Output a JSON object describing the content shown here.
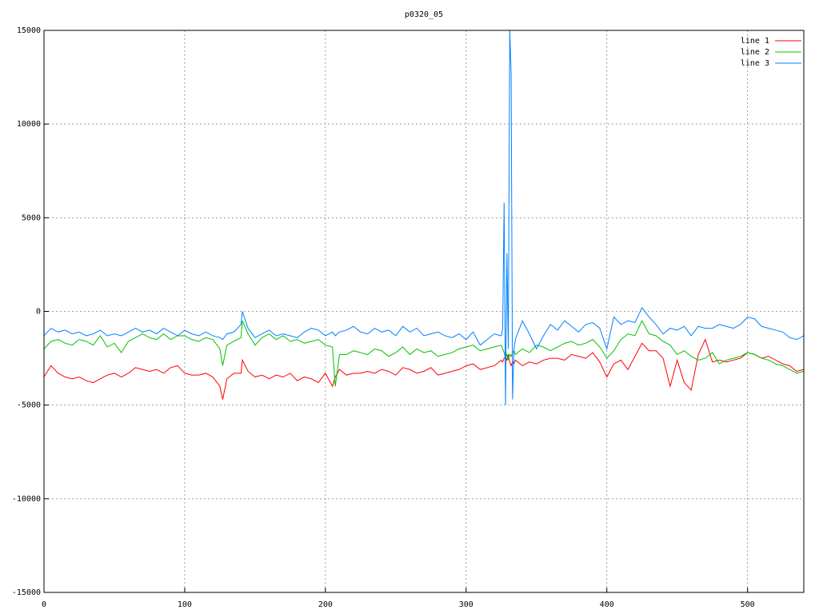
{
  "chart_data": {
    "type": "line",
    "title": "p0320_05",
    "x": [
      0,
      5,
      10,
      15,
      20,
      25,
      30,
      35,
      40,
      45,
      50,
      55,
      60,
      65,
      70,
      75,
      80,
      85,
      90,
      95,
      100,
      105,
      110,
      115,
      120,
      125,
      127,
      130,
      135,
      140,
      141,
      145,
      150,
      155,
      160,
      165,
      170,
      175,
      180,
      185,
      190,
      195,
      200,
      205,
      207,
      210,
      215,
      220,
      225,
      230,
      235,
      240,
      245,
      250,
      255,
      260,
      265,
      270,
      275,
      280,
      285,
      290,
      295,
      300,
      305,
      310,
      315,
      320,
      325,
      326,
      327,
      328,
      329,
      330,
      331,
      332,
      333,
      334,
      335,
      340,
      345,
      350,
      355,
      360,
      365,
      370,
      375,
      380,
      385,
      390,
      395,
      400,
      405,
      410,
      415,
      420,
      425,
      430,
      435,
      440,
      445,
      450,
      455,
      460,
      465,
      470,
      475,
      480,
      485,
      490,
      495,
      500,
      505,
      510,
      515,
      520,
      525,
      530,
      535,
      540
    ],
    "series": [
      {
        "name": "line 1",
        "color": "#ff0000",
        "values": [
          -3500,
          -2900,
          -3300,
          -3500,
          -3600,
          -3500,
          -3700,
          -3800,
          -3600,
          -3400,
          -3300,
          -3500,
          -3300,
          -3000,
          -3100,
          -3200,
          -3100,
          -3300,
          -3000,
          -2900,
          -3300,
          -3400,
          -3400,
          -3300,
          -3500,
          -4000,
          -4700,
          -3600,
          -3300,
          -3300,
          -2600,
          -3200,
          -3500,
          -3400,
          -3600,
          -3400,
          -3500,
          -3300,
          -3700,
          -3500,
          -3600,
          -3800,
          -3300,
          -4000,
          -3500,
          -3100,
          -3400,
          -3300,
          -3300,
          -3200,
          -3300,
          -3100,
          -3200,
          -3400,
          -3000,
          -3100,
          -3300,
          -3200,
          -3000,
          -3400,
          -3300,
          -3200,
          -3100,
          -2900,
          -2800,
          -3100,
          -3000,
          -2900,
          -2600,
          -2700,
          -2500,
          -2400,
          -2600,
          -2300,
          -2700,
          -2900,
          -2700,
          -2800,
          -2600,
          -2900,
          -2700,
          -2800,
          -2600,
          -2500,
          -2500,
          -2600,
          -2300,
          -2400,
          -2500,
          -2200,
          -2700,
          -3500,
          -2800,
          -2600,
          -3100,
          -2400,
          -1700,
          -2100,
          -2100,
          -2500,
          -4000,
          -2600,
          -3800,
          -4200,
          -2300,
          -1500,
          -2700,
          -2600,
          -2700,
          -2600,
          -2500,
          -2200,
          -2300,
          -2500,
          -2400,
          -2600,
          -2800,
          -2900,
          -3200,
          -3100
        ]
      },
      {
        "name": "line 2",
        "color": "#00c000",
        "values": [
          -2000,
          -1600,
          -1500,
          -1700,
          -1800,
          -1500,
          -1600,
          -1800,
          -1300,
          -1900,
          -1700,
          -2200,
          -1600,
          -1400,
          -1200,
          -1400,
          -1500,
          -1200,
          -1500,
          -1300,
          -1300,
          -1500,
          -1600,
          -1400,
          -1500,
          -2000,
          -2900,
          -1800,
          -1600,
          -1400,
          -500,
          -1200,
          -1800,
          -1400,
          -1200,
          -1500,
          -1300,
          -1600,
          -1500,
          -1700,
          -1600,
          -1500,
          -1800,
          -1900,
          -4000,
          -2300,
          -2300,
          -2100,
          -2200,
          -2300,
          -2000,
          -2100,
          -2400,
          -2200,
          -1900,
          -2300,
          -2000,
          -2200,
          -2100,
          -2400,
          -2300,
          -2200,
          -2000,
          -1900,
          -1800,
          -2100,
          -2000,
          -1900,
          -1800,
          -2000,
          -2200,
          -2500,
          -2300,
          -2600,
          -2300,
          -2400,
          -2200,
          -2100,
          -2300,
          -2000,
          -2200,
          -1800,
          -1900,
          -2100,
          -1900,
          -1700,
          -1600,
          -1800,
          -1700,
          -1500,
          -1900,
          -2500,
          -2100,
          -1500,
          -1200,
          -1300,
          -500,
          -1200,
          -1300,
          -1600,
          -1800,
          -2300,
          -2100,
          -2400,
          -2600,
          -2500,
          -2200,
          -2800,
          -2600,
          -2500,
          -2400,
          -2200,
          -2300,
          -2500,
          -2600,
          -2800,
          -2900,
          -3100,
          -3300,
          -3200
        ]
      },
      {
        "name": "line 3",
        "color": "#0080ff",
        "values": [
          -1300,
          -900,
          -1100,
          -1000,
          -1200,
          -1100,
          -1300,
          -1200,
          -1000,
          -1300,
          -1200,
          -1300,
          -1100,
          -900,
          -1100,
          -1000,
          -1200,
          -900,
          -1100,
          -1300,
          -1000,
          -1200,
          -1300,
          -1100,
          -1300,
          -1400,
          -1500,
          -1200,
          -1100,
          -700,
          0,
          -900,
          -1400,
          -1200,
          -1000,
          -1300,
          -1200,
          -1300,
          -1400,
          -1100,
          -900,
          -1000,
          -1300,
          -1100,
          -1300,
          -1100,
          -1000,
          -800,
          -1100,
          -1200,
          -900,
          -1100,
          -1000,
          -1300,
          -800,
          -1100,
          -900,
          -1300,
          -1200,
          -1100,
          -1300,
          -1400,
          -1200,
          -1500,
          -1100,
          -1800,
          -1500,
          -1200,
          -1300,
          -900,
          5800,
          -5000,
          3100,
          -2000,
          15000,
          12700,
          -4700,
          -2000,
          -1500,
          -500,
          -1200,
          -2000,
          -1300,
          -700,
          -1000,
          -500,
          -800,
          -1100,
          -700,
          -600,
          -900,
          -2000,
          -300,
          -700,
          -500,
          -600,
          200,
          -300,
          -700,
          -1200,
          -900,
          -1000,
          -800,
          -1300,
          -800,
          -900,
          -900,
          -700,
          -800,
          -900,
          -700,
          -300,
          -400,
          -800,
          -900,
          -1000,
          -1100,
          -1400,
          -1500,
          -1300
        ]
      }
    ],
    "xlim": [
      0,
      540
    ],
    "ylim": [
      -15000,
      15000
    ],
    "xticks": [
      0,
      100,
      200,
      300,
      400,
      500
    ],
    "yticks": [
      -15000,
      -10000,
      -5000,
      0,
      5000,
      10000,
      15000
    ],
    "grid": true,
    "legend": "top-right"
  }
}
